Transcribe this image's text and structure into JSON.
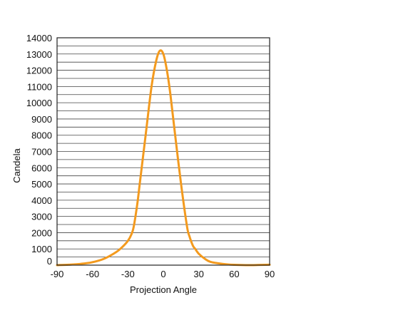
{
  "chart_data": {
    "type": "line",
    "title": "",
    "xlabel": "Projection Angle",
    "ylabel": "Candela",
    "xlim": [
      -90,
      90
    ],
    "ylim": [
      0,
      14000
    ],
    "x_ticks": [
      -90,
      -60,
      -30,
      0,
      30,
      60,
      90
    ],
    "y_ticks": [
      0,
      1000,
      2000,
      3000,
      4000,
      5000,
      6000,
      7000,
      8000,
      9000,
      10000,
      11000,
      12000,
      13000,
      14000
    ],
    "grid": "horizontal lines every 500",
    "legend": "none",
    "series": [
      {
        "color": "#F39A1E",
        "x": [
          -90,
          -80,
          -70,
          -60,
          -50,
          -40,
          -35,
          -30,
          -27,
          -25,
          -22,
          -20,
          -15,
          -10,
          -6,
          -3,
          0,
          3,
          6,
          10,
          15,
          20,
          22,
          25,
          27,
          30,
          35,
          40,
          50,
          60,
          70,
          80,
          90
        ],
        "values": [
          0,
          30,
          80,
          180,
          400,
          800,
          1100,
          1500,
          1900,
          2400,
          3800,
          5000,
          8000,
          11000,
          12600,
          13200,
          13000,
          12000,
          10500,
          8000,
          5000,
          2400,
          1800,
          1200,
          1000,
          700,
          400,
          200,
          80,
          20,
          0,
          10,
          30
        ]
      }
    ]
  }
}
